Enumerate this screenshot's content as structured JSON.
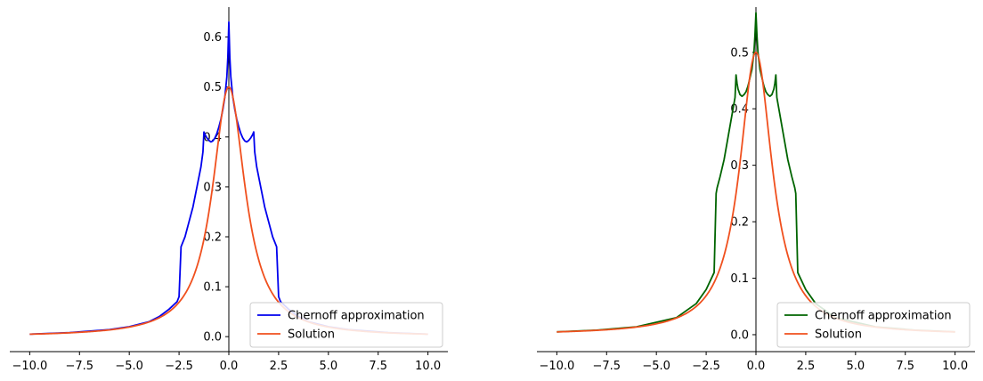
{
  "chart_data": [
    {
      "type": "line",
      "title": "",
      "xlabel": "",
      "ylabel": "",
      "xlim": [
        -11,
        11
      ],
      "ylim": [
        -0.03,
        0.66
      ],
      "x_ticks": [
        -10.0,
        -7.5,
        -5.0,
        -2.5,
        0.0,
        2.5,
        5.0,
        7.5,
        10.0
      ],
      "x_tick_labels": [
        "−10.0",
        "−7.5",
        "−5.0",
        "−2.5",
        "0.0",
        "2.5",
        "5.0",
        "7.5",
        "10.0"
      ],
      "y_ticks": [
        0.0,
        0.1,
        0.2,
        0.3,
        0.4,
        0.5,
        0.6
      ],
      "y_tick_labels": [
        "0.0",
        "0.1",
        "0.2",
        "0.3",
        "0.4",
        "0.5",
        "0.6"
      ],
      "spines": "centered-left-bottom",
      "grid": false,
      "legend_position": "lower-right",
      "series": [
        {
          "name": "Chernoff approximation",
          "color": "#0000ee",
          "x": [
            -10.0,
            -8.0,
            -6.0,
            -5.0,
            -4.0,
            -3.5,
            -3.0,
            -2.6,
            -2.5,
            -2.4,
            -2.2,
            -2.0,
            -1.8,
            -1.6,
            -1.4,
            -1.3,
            -1.25,
            -1.2,
            -1.1,
            -1.0,
            -0.9,
            -0.8,
            -0.7,
            -0.6,
            -0.5,
            -0.4,
            -0.3,
            -0.2,
            -0.1,
            -0.05,
            0.0,
            0.05,
            0.1,
            0.2,
            0.3,
            0.4,
            0.5,
            0.6,
            0.7,
            0.8,
            0.9,
            1.0,
            1.1,
            1.2,
            1.25,
            1.3,
            1.4,
            1.6,
            1.8,
            2.0,
            2.2,
            2.4,
            2.5,
            2.6,
            3.0,
            3.5,
            4.0,
            5.0,
            6.0,
            8.0,
            10.0
          ],
          "y": [
            0.005,
            0.008,
            0.014,
            0.02,
            0.03,
            0.04,
            0.055,
            0.07,
            0.08,
            0.18,
            0.2,
            0.23,
            0.26,
            0.3,
            0.34,
            0.37,
            0.41,
            0.405,
            0.398,
            0.393,
            0.39,
            0.392,
            0.398,
            0.407,
            0.42,
            0.435,
            0.455,
            0.48,
            0.52,
            0.56,
            0.63,
            0.56,
            0.52,
            0.48,
            0.455,
            0.435,
            0.42,
            0.407,
            0.398,
            0.392,
            0.39,
            0.393,
            0.398,
            0.405,
            0.41,
            0.37,
            0.34,
            0.3,
            0.26,
            0.23,
            0.2,
            0.18,
            0.08,
            0.07,
            0.055,
            0.04,
            0.03,
            0.02,
            0.014,
            0.008,
            0.005
          ]
        },
        {
          "name": "Solution",
          "color": "#f0501e",
          "function": "lorentzian",
          "peak": 0.5,
          "x_range": [
            -10,
            10
          ]
        }
      ]
    },
    {
      "type": "line",
      "title": "",
      "xlabel": "",
      "ylabel": "",
      "xlim": [
        -11,
        11
      ],
      "ylim": [
        -0.03,
        0.58
      ],
      "x_ticks": [
        -10.0,
        -7.5,
        -5.0,
        -2.5,
        0.0,
        2.5,
        5.0,
        7.5,
        10.0
      ],
      "x_tick_labels": [
        "−10.0",
        "−7.5",
        "−5.0",
        "−2.5",
        "0.0",
        "2.5",
        "5.0",
        "7.5",
        "10.0"
      ],
      "y_ticks": [
        0.0,
        0.1,
        0.2,
        0.3,
        0.4,
        0.5
      ],
      "y_tick_labels": [
        "0.0",
        "0.1",
        "0.2",
        "0.3",
        "0.4",
        "0.5"
      ],
      "spines": "centered-left-bottom",
      "grid": false,
      "legend_position": "lower-right",
      "series": [
        {
          "name": "Chernoff approximation",
          "color": "#006400",
          "x": [
            -10.0,
            -8.0,
            -6.0,
            -4.0,
            -3.0,
            -2.5,
            -2.1,
            -2.0,
            -1.95,
            -1.8,
            -1.6,
            -1.4,
            -1.2,
            -1.05,
            -1.0,
            -0.95,
            -0.9,
            -0.8,
            -0.7,
            -0.6,
            -0.5,
            -0.4,
            -0.3,
            -0.2,
            -0.1,
            -0.05,
            0.0,
            0.05,
            0.1,
            0.2,
            0.3,
            0.4,
            0.5,
            0.6,
            0.7,
            0.8,
            0.9,
            0.95,
            1.0,
            1.05,
            1.2,
            1.4,
            1.6,
            1.8,
            1.95,
            2.0,
            2.1,
            2.5,
            3.0,
            4.0,
            6.0,
            8.0,
            10.0
          ],
          "y": [
            0.005,
            0.008,
            0.014,
            0.03,
            0.055,
            0.08,
            0.11,
            0.25,
            0.26,
            0.28,
            0.31,
            0.35,
            0.39,
            0.42,
            0.46,
            0.445,
            0.435,
            0.425,
            0.422,
            0.425,
            0.43,
            0.44,
            0.455,
            0.47,
            0.5,
            0.53,
            0.57,
            0.53,
            0.5,
            0.47,
            0.455,
            0.44,
            0.43,
            0.425,
            0.422,
            0.425,
            0.435,
            0.445,
            0.46,
            0.42,
            0.39,
            0.35,
            0.31,
            0.28,
            0.26,
            0.25,
            0.11,
            0.08,
            0.055,
            0.03,
            0.014,
            0.008,
            0.005
          ]
        },
        {
          "name": "Solution",
          "color": "#f0501e",
          "function": "lorentzian",
          "peak": 0.5,
          "x_range": [
            -10,
            10
          ]
        }
      ]
    }
  ]
}
